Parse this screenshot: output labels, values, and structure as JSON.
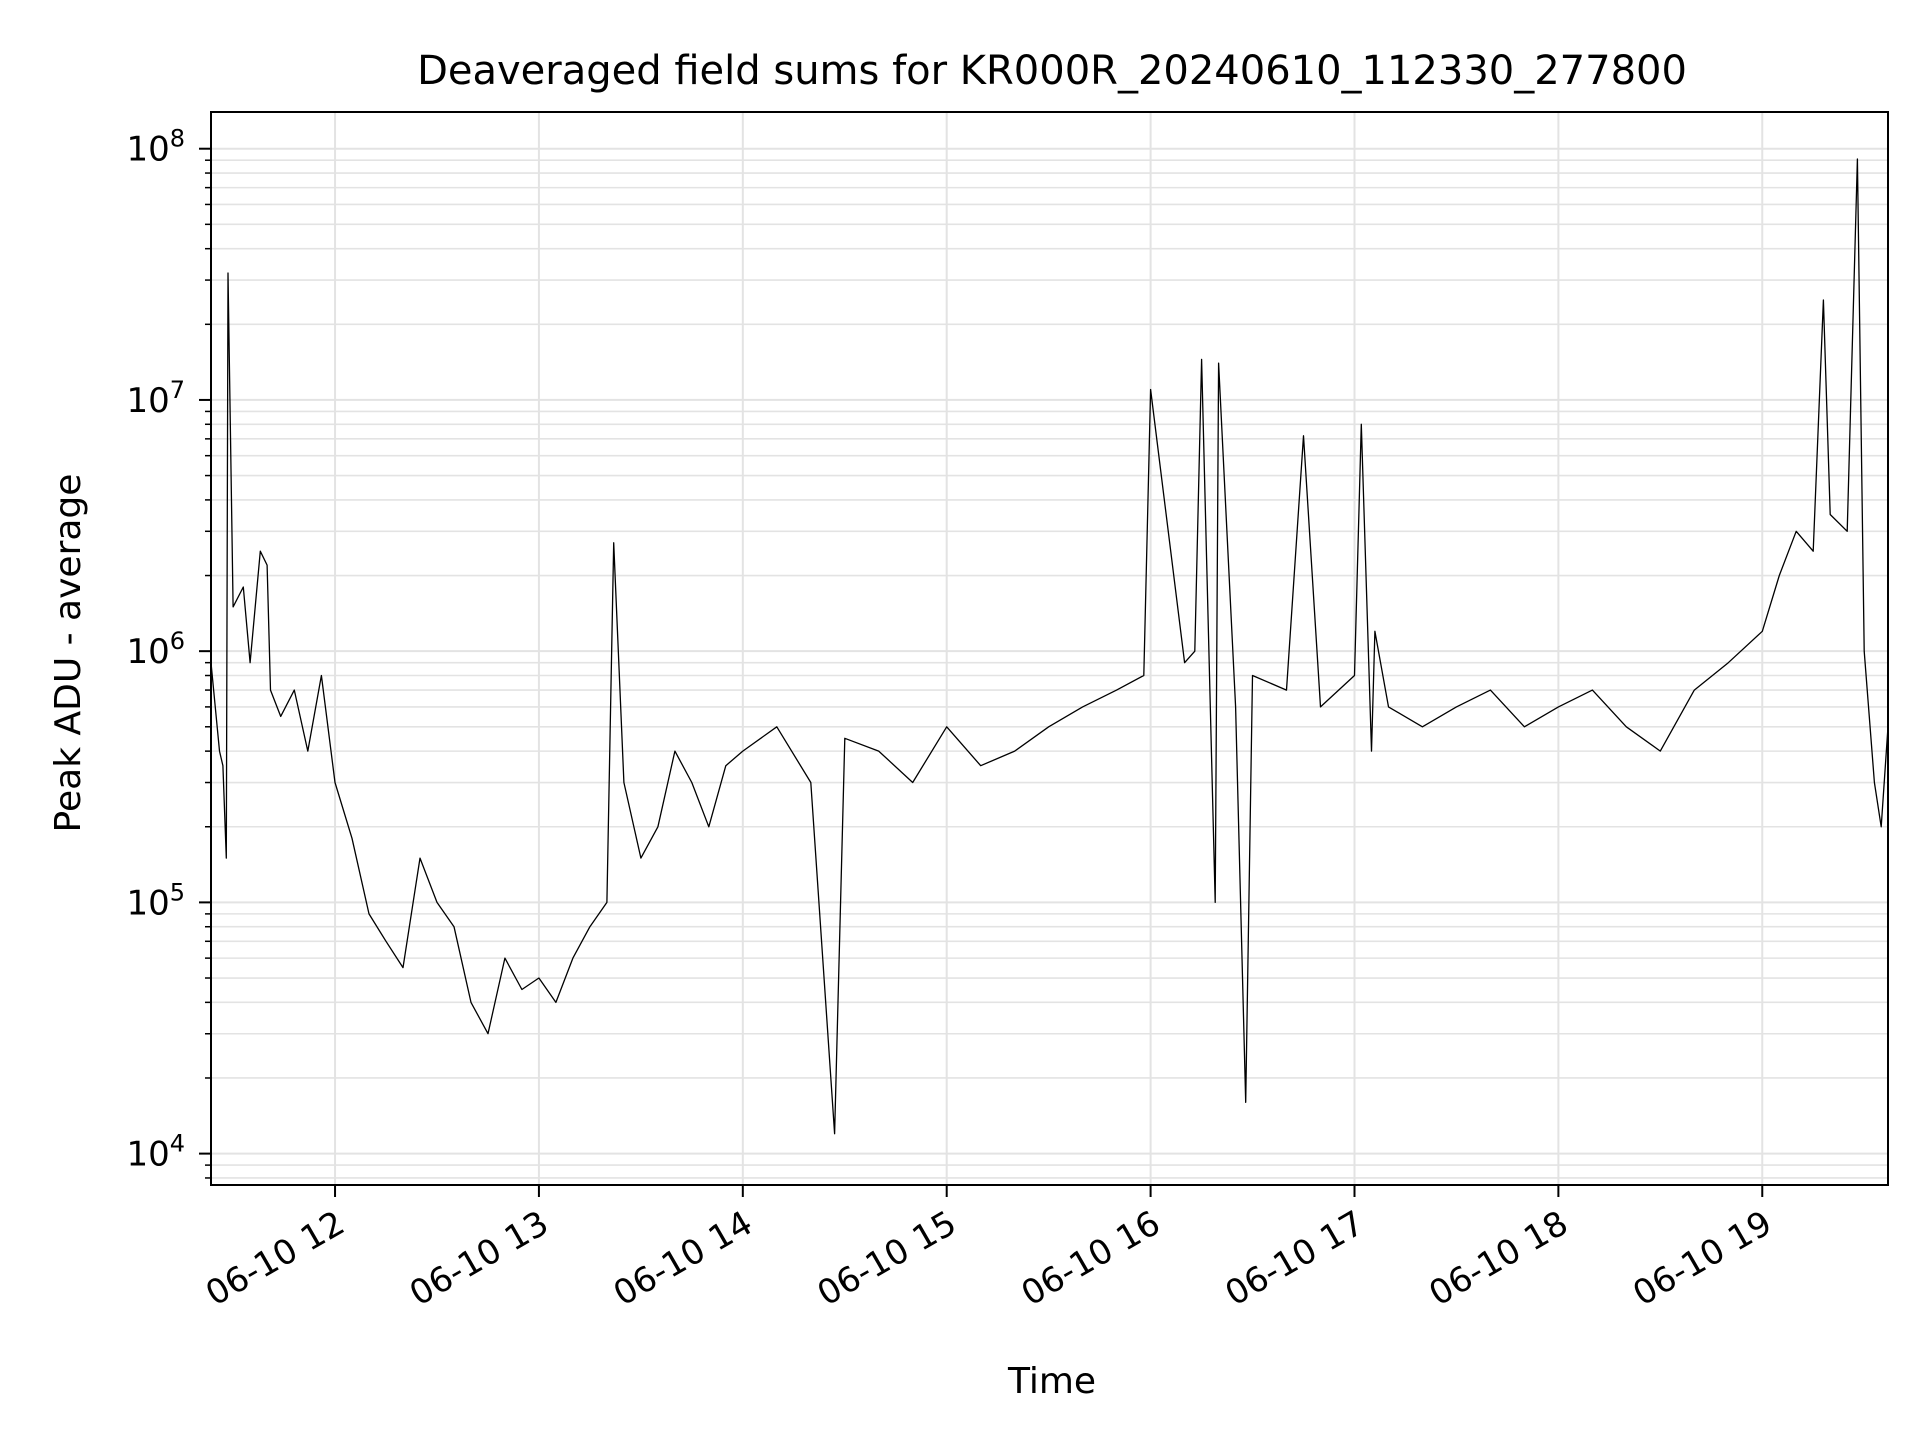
{
  "chart_data": {
    "type": "line",
    "title": "Deaveraged field sums for KR000R_20240610_112330_277800",
    "xlabel": "Time",
    "ylabel": "Peak ADU - average",
    "y_scale": "log",
    "ylim": [
      7500,
      140000000
    ],
    "xlim": [
      "2024-06-10 11:23:30",
      "2024-06-10 19:37:00"
    ],
    "grid": true,
    "legend": "none",
    "line_color": "#000000",
    "x_ticks": [
      {
        "t": "2024-06-10 12:00",
        "label": "06-10 12"
      },
      {
        "t": "2024-06-10 13:00",
        "label": "06-10 13"
      },
      {
        "t": "2024-06-10 14:00",
        "label": "06-10 14"
      },
      {
        "t": "2024-06-10 15:00",
        "label": "06-10 15"
      },
      {
        "t": "2024-06-10 16:00",
        "label": "06-10 16"
      },
      {
        "t": "2024-06-10 17:00",
        "label": "06-10 17"
      },
      {
        "t": "2024-06-10 18:00",
        "label": "06-10 18"
      },
      {
        "t": "2024-06-10 19:00",
        "label": "06-10 19"
      }
    ],
    "y_ticks": [
      {
        "value": 10000,
        "base": "10",
        "exp": "4"
      },
      {
        "value": 100000,
        "base": "10",
        "exp": "5"
      },
      {
        "value": 1000000,
        "base": "10",
        "exp": "6"
      },
      {
        "value": 10000000,
        "base": "10",
        "exp": "7"
      },
      {
        "value": 100000000,
        "base": "10",
        "exp": "8"
      }
    ],
    "series": [
      {
        "x": [
          "2024-06-10 11:23:30",
          "2024-06-10 11:26:00",
          "2024-06-10 11:27:00",
          "2024-06-10 11:28:00",
          "2024-06-10 11:28:30",
          "2024-06-10 11:30:00",
          "2024-06-10 11:33:00",
          "2024-06-10 11:35:00",
          "2024-06-10 11:38:00",
          "2024-06-10 11:40:00",
          "2024-06-10 11:41:00",
          "2024-06-10 11:44:00",
          "2024-06-10 11:48:00",
          "2024-06-10 11:52:00",
          "2024-06-10 11:56:00",
          "2024-06-10 12:00:00",
          "2024-06-10 12:05:00",
          "2024-06-10 12:10:00",
          "2024-06-10 12:15:00",
          "2024-06-10 12:20:00",
          "2024-06-10 12:25:00",
          "2024-06-10 12:30:00",
          "2024-06-10 12:35:00",
          "2024-06-10 12:40:00",
          "2024-06-10 12:45:00",
          "2024-06-10 12:50:00",
          "2024-06-10 12:55:00",
          "2024-06-10 13:00:00",
          "2024-06-10 13:05:00",
          "2024-06-10 13:10:00",
          "2024-06-10 13:15:00",
          "2024-06-10 13:20:00",
          "2024-06-10 13:22:00",
          "2024-06-10 13:25:00",
          "2024-06-10 13:30:00",
          "2024-06-10 13:35:00",
          "2024-06-10 13:40:00",
          "2024-06-10 13:45:00",
          "2024-06-10 13:50:00",
          "2024-06-10 13:55:00",
          "2024-06-10 14:00:00",
          "2024-06-10 14:10:00",
          "2024-06-10 14:20:00",
          "2024-06-10 14:27:00",
          "2024-06-10 14:30:00",
          "2024-06-10 14:40:00",
          "2024-06-10 14:50:00",
          "2024-06-10 15:00:00",
          "2024-06-10 15:10:00",
          "2024-06-10 15:20:00",
          "2024-06-10 15:30:00",
          "2024-06-10 15:40:00",
          "2024-06-10 15:50:00",
          "2024-06-10 15:58:00",
          "2024-06-10 16:00:00",
          "2024-06-10 16:10:00",
          "2024-06-10 16:13:00",
          "2024-06-10 16:15:00",
          "2024-06-10 16:19:00",
          "2024-06-10 16:20:00",
          "2024-06-10 16:25:00",
          "2024-06-10 16:28:00",
          "2024-06-10 16:30:00",
          "2024-06-10 16:40:00",
          "2024-06-10 16:45:00",
          "2024-06-10 16:50:00",
          "2024-06-10 17:00:00",
          "2024-06-10 17:02:00",
          "2024-06-10 17:05:00",
          "2024-06-10 17:06:00",
          "2024-06-10 17:10:00",
          "2024-06-10 17:20:00",
          "2024-06-10 17:30:00",
          "2024-06-10 17:40:00",
          "2024-06-10 17:50:00",
          "2024-06-10 18:00:00",
          "2024-06-10 18:10:00",
          "2024-06-10 18:20:00",
          "2024-06-10 18:30:00",
          "2024-06-10 18:40:00",
          "2024-06-10 18:50:00",
          "2024-06-10 19:00:00",
          "2024-06-10 19:05:00",
          "2024-06-10 19:10:00",
          "2024-06-10 19:15:00",
          "2024-06-10 19:18:00",
          "2024-06-10 19:20:00",
          "2024-06-10 19:25:00",
          "2024-06-10 19:28:00",
          "2024-06-10 19:30:00",
          "2024-06-10 19:33:00",
          "2024-06-10 19:35:00",
          "2024-06-10 19:37:00"
        ],
        "y": [
          900000,
          400000,
          350000,
          150000,
          32000000,
          1500000,
          1800000,
          900000,
          2500000,
          2200000,
          700000,
          550000,
          700000,
          400000,
          800000,
          300000,
          180000,
          90000,
          70000,
          55000,
          150000,
          100000,
          80000,
          40000,
          30000,
          60000,
          45000,
          50000,
          40000,
          60000,
          80000,
          100000,
          2700000,
          300000,
          150000,
          200000,
          400000,
          300000,
          200000,
          350000,
          400000,
          500000,
          300000,
          12000,
          450000,
          400000,
          300000,
          500000,
          350000,
          400000,
          500000,
          600000,
          700000,
          800000,
          11000000,
          900000,
          1000000,
          14500000,
          100000,
          14000000,
          600000,
          16000,
          800000,
          700000,
          7200000,
          600000,
          800000,
          8000000,
          400000,
          1200000,
          600000,
          500000,
          600000,
          700000,
          500000,
          600000,
          700000,
          500000,
          400000,
          700000,
          900000,
          1200000,
          2000000,
          3000000,
          2500000,
          25000000,
          3500000,
          3000000,
          91000000,
          1000000,
          300000,
          200000,
          500000
        ]
      }
    ]
  }
}
